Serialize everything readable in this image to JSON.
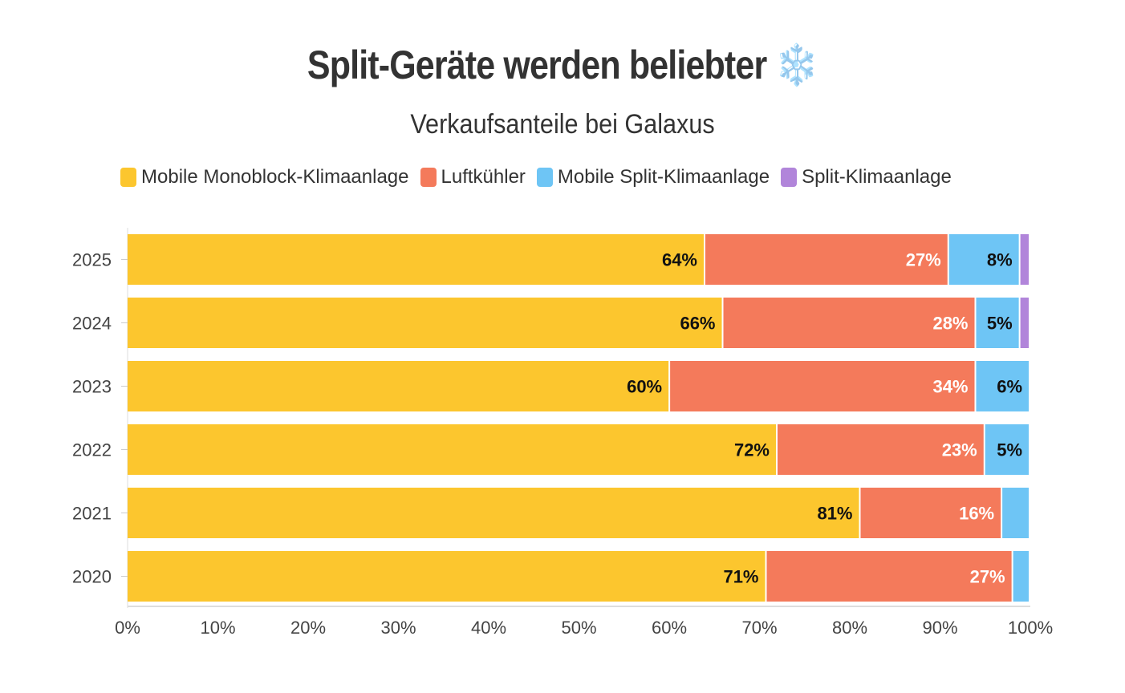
{
  "chart_data": {
    "type": "bar",
    "orientation": "horizontal",
    "stacked": true,
    "title": "Split-Geräte werden beliebter",
    "title_icon": "snowflake-icon",
    "subtitle": "Verkaufsanteile bei Galaxus",
    "categories": [
      "2025",
      "2024",
      "2023",
      "2022",
      "2021",
      "2020"
    ],
    "series": [
      {
        "name": "Mobile Monoblock-Klimaanlage",
        "color": "#FCC62E",
        "label_color": "#111111",
        "values": [
          64,
          66,
          60.1,
          72,
          81.2,
          70.8
        ],
        "labels": [
          "64%",
          "66%",
          "60%",
          "72%",
          "81%",
          "71%"
        ]
      },
      {
        "name": "Luftkühler",
        "color": "#F47A5B",
        "label_color": "#FFFFFF",
        "values": [
          27,
          28,
          33.9,
          23,
          15.7,
          27.3
        ],
        "labels": [
          "27%",
          "28%",
          "34%",
          "23%",
          "16%",
          "27%"
        ]
      },
      {
        "name": "Mobile Split-Klimaanlage",
        "color": "#6EC5F5",
        "label_color": "#111111",
        "values": [
          7.9,
          4.9,
          6,
          5,
          3.1,
          1.9
        ],
        "labels": [
          "8%",
          "5%",
          "6%",
          "5%",
          "",
          ""
        ]
      },
      {
        "name": "Split-Klimaanlage",
        "color": "#B185DA",
        "label_color": "#111111",
        "values": [
          1.1,
          1.1,
          0,
          0,
          0,
          0
        ],
        "labels": [
          "",
          "",
          "",
          "",
          "",
          ""
        ]
      }
    ],
    "xlim": [
      0,
      100
    ],
    "xticks": [
      "0%",
      "10%",
      "20%",
      "30%",
      "40%",
      "50%",
      "60%",
      "70%",
      "80%",
      "90%",
      "100%"
    ],
    "xlabel": "",
    "ylabel": "",
    "grid": false,
    "legend_position": "top"
  }
}
